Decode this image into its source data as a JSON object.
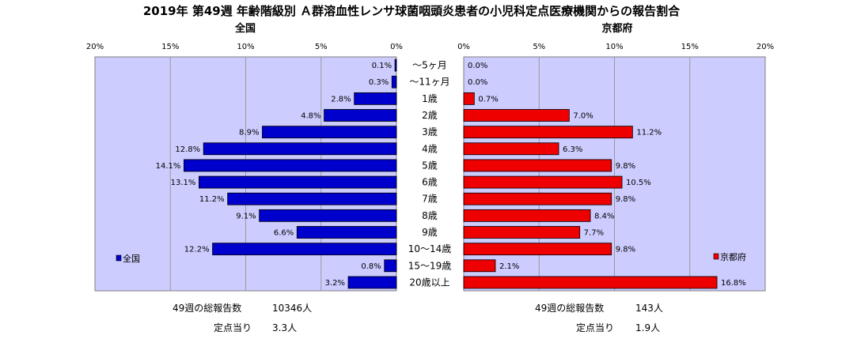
{
  "title": "2019年 第49週 年齢階級別 Ａ群溶血性レンサ球菌咽頭炎患者の小児科定点医療機関からの報告割合",
  "chart_data": {
    "type": "bar",
    "orientation": "horizontal-butterfly",
    "categories": [
      "〜5ヶ月",
      "〜11ヶ月",
      "1歳",
      "2歳",
      "3歳",
      "4歳",
      "5歳",
      "6歳",
      "7歳",
      "8歳",
      "9歳",
      "10〜14歳",
      "15〜19歳",
      "20歳以上"
    ],
    "left_axis_ticks": [
      "20%",
      "15%",
      "10%",
      "5%",
      "0%"
    ],
    "right_axis_ticks": [
      "0%",
      "5%",
      "10%",
      "15%",
      "20%"
    ],
    "xlim": [
      0,
      20
    ],
    "series": [
      {
        "name": "全国",
        "color": "#0000cc",
        "panel_title": "全国",
        "legend_label": "全国",
        "values": [
          0.1,
          0.3,
          2.8,
          4.8,
          8.9,
          12.8,
          14.1,
          13.1,
          11.2,
          9.1,
          6.6,
          12.2,
          0.8,
          3.2
        ],
        "labels": [
          "0.1%",
          "0.3%",
          "2.8%",
          "4.8%",
          "8.9%",
          "12.8%",
          "14.1%",
          "13.1%",
          "11.2%",
          "9.1%",
          "6.6%",
          "12.2%",
          "0.8%",
          "3.2%"
        ]
      },
      {
        "name": "京都府",
        "color": "#ee0000",
        "panel_title": "京都府",
        "legend_label": "京都府",
        "values": [
          0.0,
          0.0,
          0.7,
          7.0,
          11.2,
          6.3,
          9.8,
          10.5,
          9.8,
          8.4,
          7.7,
          9.8,
          2.1,
          16.8
        ],
        "labels": [
          "0.0%",
          "0.0%",
          "0.7%",
          "7.0%",
          "11.2%",
          "6.3%",
          "9.8%",
          "10.5%",
          "9.8%",
          "8.4%",
          "7.7%",
          "9.8%",
          "2.1%",
          "16.8%"
        ]
      }
    ],
    "grid": true,
    "legend": "bottom-inside"
  },
  "footer": {
    "left": {
      "total_label": "49週の総報告数",
      "total_value": "10346人",
      "per_label": "定点当り",
      "per_value": "3.3人"
    },
    "right": {
      "total_label": "49週の総報告数",
      "total_value": "143人",
      "per_label": "定点当り",
      "per_value": "1.9人"
    }
  },
  "colors": {
    "plot_bg": "#ccccff",
    "grid": "#999999"
  }
}
